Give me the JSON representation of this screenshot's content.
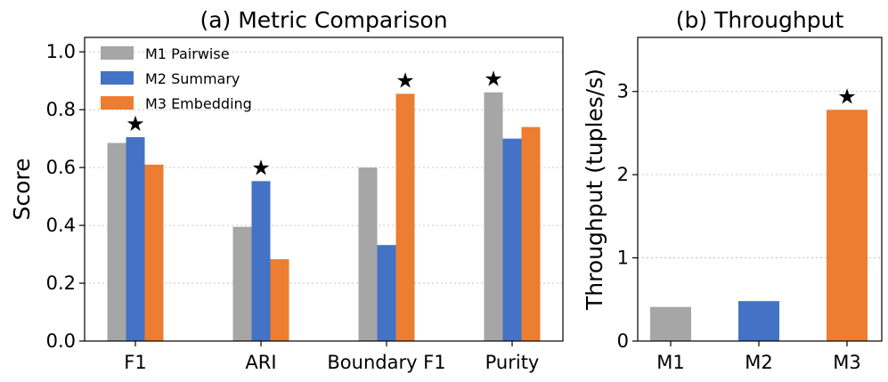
{
  "chart_data": [
    {
      "type": "bar",
      "title": "(a) Metric Comparison",
      "xlabel": "",
      "ylabel": "Score",
      "ylim": [
        0,
        1.05
      ],
      "yticks": [
        0.0,
        0.2,
        0.4,
        0.6,
        0.8,
        1.0
      ],
      "ytick_labels": [
        "0.0",
        "0.2",
        "0.4",
        "0.6",
        "0.8",
        "1.0"
      ],
      "categories": [
        "F1",
        "ARI",
        "Boundary F1",
        "Purity"
      ],
      "series": [
        {
          "name": "M1 Pairwise",
          "color": "#a6a6a6",
          "values": [
            0.685,
            0.395,
            0.6,
            0.86
          ]
        },
        {
          "name": "M2 Summary",
          "color": "#4472c4",
          "values": [
            0.705,
            0.553,
            0.332,
            0.7
          ]
        },
        {
          "name": "M3 Embedding",
          "color": "#ed7d31",
          "values": [
            0.61,
            0.283,
            0.855,
            0.74
          ]
        }
      ],
      "best_marker": "★",
      "best_series_index": [
        1,
        1,
        2,
        0
      ],
      "grid": "horizontal dotted",
      "legend": "top-left"
    },
    {
      "type": "bar",
      "title": "(b) Throughput",
      "xlabel": "",
      "ylabel": "Throughput (tuples/s)",
      "ylim": [
        0,
        3.65
      ],
      "yticks": [
        0,
        1,
        2,
        3
      ],
      "ytick_labels": [
        "0",
        "1",
        "2",
        "3"
      ],
      "categories": [
        "M1",
        "M2",
        "M3"
      ],
      "values": [
        0.41,
        0.48,
        2.78
      ],
      "colors": [
        "#a6a6a6",
        "#4472c4",
        "#ed7d31"
      ],
      "best_marker": "★",
      "best_index": 2,
      "grid": "horizontal dotted"
    }
  ]
}
